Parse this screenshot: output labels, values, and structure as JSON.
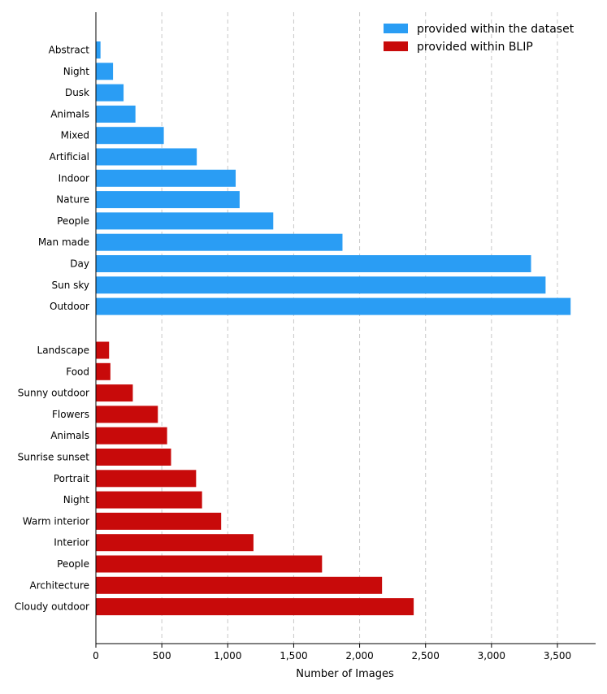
{
  "chart_data": {
    "type": "bar",
    "orientation": "horizontal",
    "title": "",
    "xlabel": "Number of Images",
    "ylabel": "",
    "xlim": [
      0,
      3800
    ],
    "xticks": [
      0,
      500,
      1000,
      1500,
      2000,
      2500,
      3000,
      3500
    ],
    "xtick_labels": [
      "0",
      "500",
      "1,000",
      "1,500",
      "2,000",
      "2,500",
      "3,000",
      "3,500"
    ],
    "grid": "vertical dashed",
    "legend_position": "top-right",
    "series": [
      {
        "name": "provided within the dataset",
        "color": "#2a9df4",
        "categories": [
          "Abstract",
          "Night",
          "Dusk",
          "Animals",
          "Mixed",
          "Artificial",
          "Indoor",
          "Nature",
          "People",
          "Man made",
          "Day",
          "Sun sky",
          "Outdoor"
        ],
        "values": [
          35,
          130,
          210,
          300,
          515,
          765,
          1060,
          1090,
          1345,
          1870,
          3300,
          3410,
          3600
        ]
      },
      {
        "name": "provided within BLIP",
        "color": "#c80a0a",
        "categories": [
          "Landscape",
          "Food",
          "Sunny outdoor",
          "Flowers",
          "Animals",
          "Sunrise sunset",
          "Portrait",
          "Night",
          "Warm interior",
          "Interior",
          "People",
          "Architecture",
          "Cloudy outdoor"
        ],
        "values": [
          100,
          110,
          280,
          470,
          540,
          570,
          760,
          805,
          950,
          1195,
          1715,
          2170,
          2410
        ]
      }
    ]
  }
}
